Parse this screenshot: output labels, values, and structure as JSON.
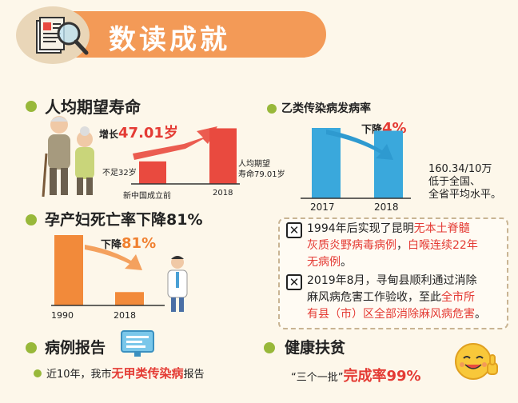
{
  "header": {
    "title": "数读成就"
  },
  "life": {
    "heading": "人均期望寿命",
    "increase_prefix": "增长",
    "increase_value": "47.01岁",
    "low_label": "不足32岁",
    "high_label_1": "人均期望",
    "high_label_2": "寿命79.01岁"
  },
  "infect": {
    "heading": "乙类传染病发病率",
    "decline_prefix": "下降",
    "decline_value": "4%",
    "note_1": "160.34/10万",
    "note_2": "低于全国、",
    "note_3": "全省平均水平。"
  },
  "maternal": {
    "heading": "孕产妇死亡率下降81%",
    "decline_prefix": "下降",
    "decline_value": "81%"
  },
  "notes": {
    "n1_a": "1994年后实现了昆明",
    "n1_hl1": "无本土脊髓",
    "n1_hl2": "灰质炎野病毒病例",
    "n1_b": "，",
    "n1_hl3": "白喉连续22年",
    "n1_hl4": "无病例",
    "n1_c": "。",
    "n2_a": "2019年8月，寻甸县顺利通过消除",
    "n2_b": "麻风病危害工作验收，至此",
    "n2_hl1": "全市所",
    "n2_hl2": "有县（市）区全部消除麻风病危害",
    "n2_c": "。"
  },
  "report": {
    "heading": "病例报告",
    "text_a": "近10年，我市",
    "text_hl": "无甲类传染病",
    "text_b": "报告"
  },
  "poverty": {
    "heading": "健康扶贫",
    "text_a": "“三个一批”",
    "text_hl": "完成率99%"
  },
  "chart_data": [
    {
      "type": "bar",
      "categories": [
        "新中国成立前",
        "2018"
      ],
      "values": [
        32,
        79.01
      ],
      "ylim": [
        0,
        100
      ],
      "color": "#e94a3f"
    },
    {
      "type": "bar",
      "categories": [
        "2017",
        "2018"
      ],
      "values": [
        100,
        96
      ],
      "ylim": [
        0,
        100
      ],
      "color": "#3aa8dc"
    },
    {
      "type": "bar",
      "categories": [
        "1990",
        "2018"
      ],
      "values": [
        100,
        19
      ],
      "ylim": [
        0,
        100
      ],
      "color": "#f28a3a"
    }
  ],
  "colors": {
    "life_bar": "#e94a3f",
    "infect_bar": "#3aa8dc",
    "maternal_bar": "#f28a3a",
    "bullet": "#98b83a",
    "highlight_red": "#e43b34",
    "highlight_orange": "#f08030"
  }
}
